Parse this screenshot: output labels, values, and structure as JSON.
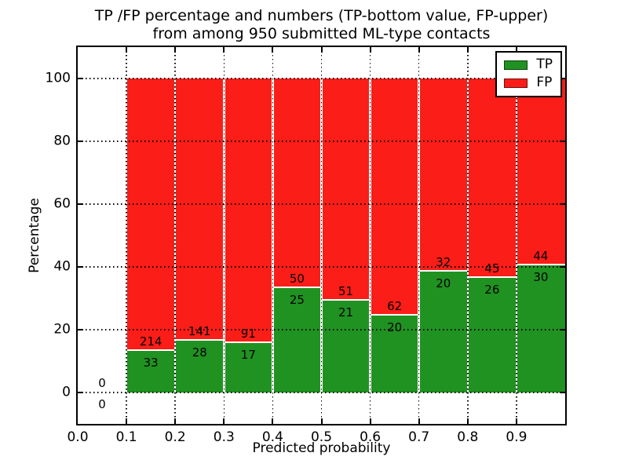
{
  "chart_data": {
    "type": "bar",
    "stacked": true,
    "title": [
      "TP /FP percentage and numbers (TP-bottom value, FP-upper)",
      "from among 950 submitted ML-type contacts"
    ],
    "xlabel": "Predicted probability",
    "ylabel": "Percentage",
    "xlim": [
      0.0,
      1.0
    ],
    "ylim": [
      -10,
      110
    ],
    "xticks": [
      0.0,
      0.1,
      0.2,
      0.3,
      0.4,
      0.5,
      0.6,
      0.7,
      0.8,
      0.9
    ],
    "xtick_labels": [
      "0.0",
      "0.1",
      "0.2",
      "0.3",
      "0.4",
      "0.5",
      "0.6",
      "0.7",
      "0.8",
      "0.9"
    ],
    "yticks": [
      0,
      20,
      40,
      60,
      80,
      100
    ],
    "ytick_labels": [
      "0",
      "20",
      "40",
      "60",
      "80",
      "100"
    ],
    "grid": true,
    "bar_unit": "percent of bin (TP+FP stack to 100%)",
    "bin_width": 0.1,
    "bins": [
      {
        "x_start": 0.0,
        "tp": 0,
        "fp": 0
      },
      {
        "x_start": 0.1,
        "tp": 33,
        "fp": 214
      },
      {
        "x_start": 0.2,
        "tp": 28,
        "fp": 141
      },
      {
        "x_start": 0.3,
        "tp": 17,
        "fp": 91
      },
      {
        "x_start": 0.4,
        "tp": 25,
        "fp": 50
      },
      {
        "x_start": 0.5,
        "tp": 21,
        "fp": 51
      },
      {
        "x_start": 0.6,
        "tp": 20,
        "fp": 62
      },
      {
        "x_start": 0.7,
        "tp": 20,
        "fp": 32
      },
      {
        "x_start": 0.8,
        "tp": 26,
        "fp": 45
      },
      {
        "x_start": 0.9,
        "tp": 30,
        "fp": 44
      }
    ],
    "legend": {
      "position": "upper right",
      "items": [
        {
          "label": "TP",
          "color": "#209221"
        },
        {
          "label": "FP",
          "color": "#fb1d17"
        }
      ]
    },
    "colors": {
      "tp_green": "#209221",
      "fp_red": "#fb1d17",
      "grid": "#000000",
      "background": "#ffffff"
    }
  }
}
